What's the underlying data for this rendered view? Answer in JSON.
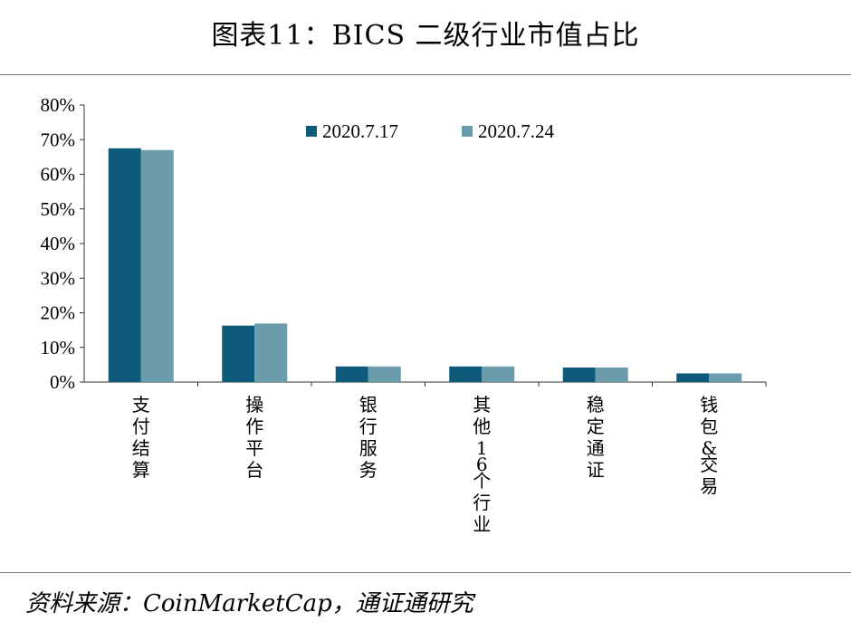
{
  "title": "图表11：BICS 二级行业市值占比",
  "source": "资料来源：CoinMarketCap，通证通研究",
  "chart_data": {
    "type": "bar",
    "categories": [
      "支付结算",
      "操作平台",
      "银行服务",
      "其他16个行业",
      "稳定通证",
      "钱包&交易"
    ],
    "series": [
      {
        "name": "2020.7.17",
        "color": "#0e5a7a",
        "values": [
          67.5,
          16.3,
          4.5,
          4.5,
          4.2,
          2.5
        ]
      },
      {
        "name": "2020.7.24",
        "color": "#6a9cab",
        "values": [
          67.0,
          16.9,
          4.5,
          4.5,
          4.2,
          2.5
        ]
      }
    ],
    "ylim": [
      0,
      80
    ],
    "yticks": [
      "0%",
      "10%",
      "20%",
      "30%",
      "40%",
      "50%",
      "60%",
      "70%",
      "80%"
    ],
    "legend": "top-center",
    "grid": false
  }
}
